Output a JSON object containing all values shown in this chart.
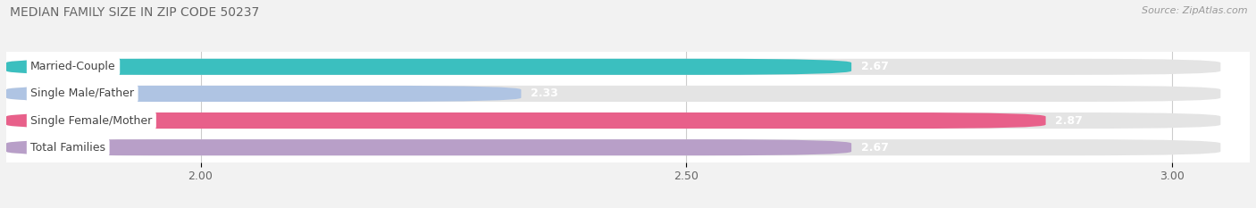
{
  "title": "MEDIAN FAMILY SIZE IN ZIP CODE 50237",
  "source": "Source: ZipAtlas.com",
  "categories": [
    "Married-Couple",
    "Single Male/Father",
    "Single Female/Mother",
    "Total Families"
  ],
  "values": [
    2.67,
    2.33,
    2.87,
    2.67
  ],
  "bar_colors": [
    "#3bbfbf",
    "#afc4e3",
    "#e8608a",
    "#b89fc8"
  ],
  "track_color": "#e4e4e4",
  "xlim_left": 1.8,
  "xlim_right": 3.08,
  "xstart": 1.8,
  "xend": 3.05,
  "xticks": [
    2.0,
    2.5,
    3.0
  ],
  "bar_height": 0.6,
  "bar_gap": 0.3,
  "background_color": "#f2f2f2",
  "plot_bg_color": "#ffffff",
  "title_fontsize": 10,
  "label_fontsize": 9,
  "value_fontsize": 9,
  "tick_fontsize": 9,
  "source_fontsize": 8
}
